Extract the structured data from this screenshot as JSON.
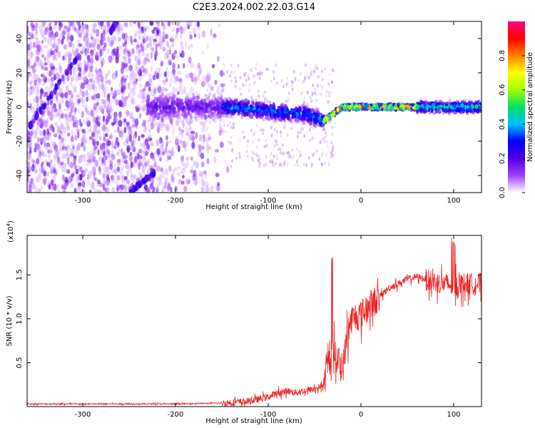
{
  "title": "C2E3.2024.002.22.03.G14",
  "chart_data": [
    {
      "type": "heatmap",
      "xlabel": "Height of straight line (km)",
      "ylabel": "Frequency (Hz)",
      "xlim": [
        -360,
        130
      ],
      "ylim": [
        -50,
        50
      ],
      "xticks": [
        -300,
        -200,
        -100,
        0,
        100
      ],
      "yticks": [
        -40,
        -20,
        0,
        20,
        40
      ],
      "grid": false,
      "colorbar": {
        "label": "Normalized spectral amplitude",
        "range": [
          0.0,
          1.0
        ],
        "ticks": [
          0.0,
          0.2,
          0.4,
          0.6,
          0.8
        ],
        "colormap": [
          "#ffffff",
          "#a040ff",
          "#5000e0",
          "#0000ff",
          "#00c0ff",
          "#00e060",
          "#a0ff00",
          "#ffff00",
          "#ff8000",
          "#ff0000",
          "#ff0080"
        ]
      },
      "features": {
        "carrier_line": {
          "x": [
            -150,
            -120,
            -90,
            -60,
            -40,
            -20,
            0,
            30,
            60,
            90,
            130
          ],
          "y": [
            0,
            -1,
            -3,
            -4,
            -8,
            0,
            0,
            0,
            0,
            0,
            0
          ]
        },
        "streaks": [
          {
            "x": [
              -358,
              -305
            ],
            "y": [
              -12,
              30
            ]
          },
          {
            "x": [
              -270,
              -263
            ],
            "y": [
              44,
              50
            ]
          },
          {
            "x": [
              -250,
              -222
            ],
            "y": [
              -50,
              -38
            ]
          }
        ]
      }
    },
    {
      "type": "line",
      "xlabel": "Height of straight line (km)",
      "ylabel": "SNR (10 * v/v)",
      "scale_note": "(x10",
      "scale_exp": "4",
      "scale_suffix": ")",
      "xlim": [
        -360,
        130
      ],
      "ylim": [
        0,
        1.95
      ],
      "xticks": [
        -300,
        -200,
        -100,
        0,
        100
      ],
      "yticks": [
        0.5,
        1.0,
        1.5
      ],
      "ytick_labels": [
        "0.5",
        "1.0",
        "1.5"
      ],
      "grid": false,
      "series": [
        {
          "color": "#ee2222",
          "x": [
            -360,
            -300,
            -200,
            -150,
            -120,
            -100,
            -90,
            -80,
            -70,
            -60,
            -50,
            -40,
            -35,
            -30,
            -25,
            -20,
            -15,
            -10,
            0,
            10,
            20,
            30,
            40,
            50,
            60,
            70,
            80,
            90,
            100,
            110,
            120,
            130
          ],
          "y": [
            0.03,
            0.03,
            0.03,
            0.04,
            0.06,
            0.11,
            0.15,
            0.18,
            0.16,
            0.18,
            0.2,
            0.25,
            0.5,
            0.6,
            0.55,
            0.4,
            0.8,
            1.0,
            1.05,
            1.15,
            1.25,
            1.35,
            1.4,
            1.45,
            1.48,
            1.45,
            1.42,
            1.4,
            1.38,
            1.4,
            1.4,
            1.4
          ]
        }
      ]
    }
  ]
}
